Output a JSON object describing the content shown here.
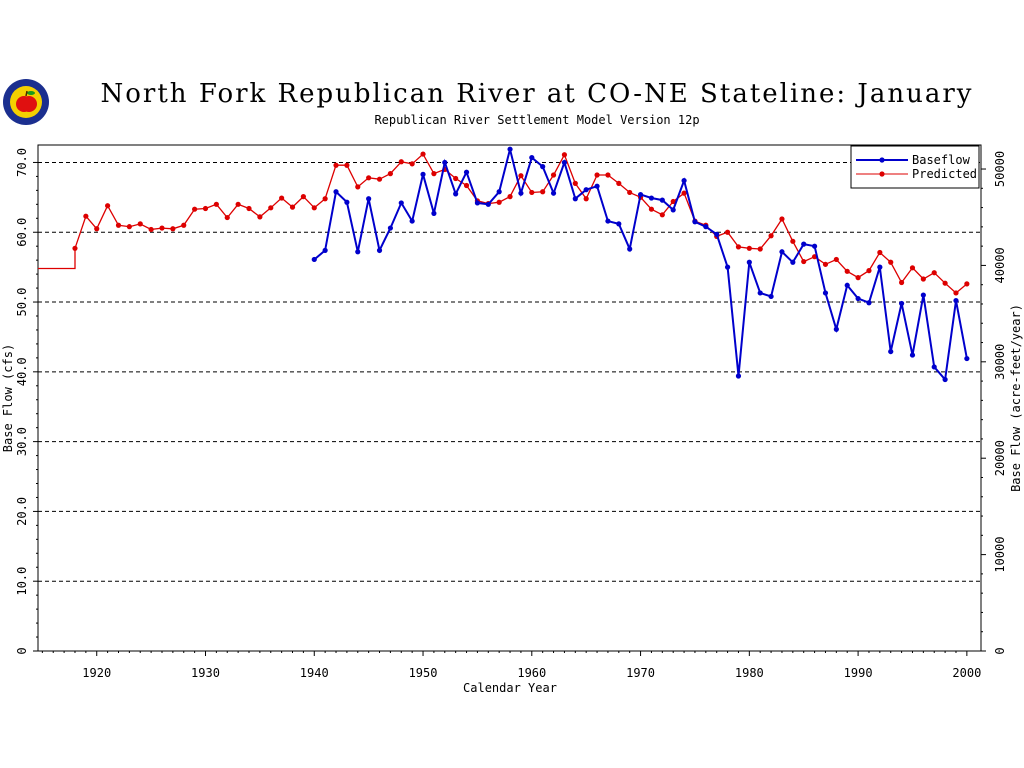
{
  "header": {
    "title": "North Fork Republican River at CO-NE Stateline: January",
    "subtitle": "Republican River Settlement Model Version 12p",
    "logo_icon": "apple-seal-logo-icon"
  },
  "colors": {
    "baseflow": "#0000cc",
    "predicted": "#dd0000",
    "grid": "#000000",
    "logo_ring": "#1b2f8f",
    "logo_fill": "#f4d000",
    "apple": "#e01010",
    "leaf": "#1b9a1b"
  },
  "chart_data": {
    "type": "line",
    "title": "North Fork Republican River at CO-NE Stateline: January",
    "subtitle": "Republican River Settlement Model Version 12p",
    "xlabel": "Calendar Year",
    "ylabel": "Base Flow (cfs)",
    "y2label": "Base Flow (acre-feet/year)",
    "xlim": [
      1914.6,
      2001.3
    ],
    "ylim": [
      0,
      72.5
    ],
    "y2lim": [
      0,
      52492
    ],
    "xticks": [
      1920,
      1930,
      1940,
      1950,
      1960,
      1970,
      1980,
      1990,
      2000
    ],
    "xtick_labels": [
      "1920",
      "1930",
      "1940",
      "1950",
      "1960",
      "1970",
      "1980",
      "1990",
      "2000"
    ],
    "yticks": [
      0,
      10,
      20,
      30,
      40,
      50,
      60,
      70
    ],
    "ytick_labels": [
      "0",
      "10.0",
      "20.0",
      "30.0",
      "40.0",
      "50.0",
      "60.0",
      "70.0"
    ],
    "y2ticks": [
      0,
      10000,
      20000,
      30000,
      40000,
      50000
    ],
    "y2tick_labels": [
      "0",
      "10000",
      "20000",
      "30000",
      "40000",
      "50000"
    ],
    "grid": "horizontal dashed at y ticks",
    "legend_position": "top-right",
    "series": [
      {
        "name": "Baseflow",
        "color": "#0000cc",
        "x": [
          1940,
          1941,
          1942,
          1943,
          1944,
          1945,
          1946,
          1947,
          1948,
          1949,
          1950,
          1951,
          1952,
          1953,
          1954,
          1955,
          1956,
          1957,
          1958,
          1959,
          1960,
          1961,
          1962,
          1963,
          1964,
          1965,
          1966,
          1967,
          1968,
          1969,
          1970,
          1971,
          1972,
          1973,
          1974,
          1975,
          1976,
          1977,
          1978,
          1979,
          1980,
          1981,
          1982,
          1983,
          1984,
          1985,
          1986,
          1987,
          1988,
          1989,
          1990,
          1991,
          1992,
          1993,
          1994,
          1995,
          1996,
          1997,
          1998,
          1999,
          2000
        ],
        "y": [
          56.1,
          57.4,
          65.8,
          64.3,
          57.2,
          64.8,
          57.4,
          60.6,
          64.2,
          61.6,
          68.3,
          62.7,
          70.0,
          65.5,
          68.6,
          64.2,
          64.0,
          65.8,
          71.9,
          65.6,
          70.7,
          69.4,
          65.6,
          70.0,
          64.8,
          66.1,
          66.6,
          61.6,
          61.2,
          57.6,
          65.4,
          64.9,
          64.6,
          63.2,
          67.4,
          61.5,
          60.8,
          59.7,
          55.0,
          39.4,
          55.7,
          51.3,
          50.8,
          57.2,
          55.7,
          58.3,
          58.0,
          51.3,
          46.1,
          52.4,
          50.5,
          49.9,
          55.0,
          42.9,
          49.8,
          42.4,
          51.0,
          40.7,
          38.9,
          50.2,
          41.9
        ]
      },
      {
        "name": "Predicted",
        "color": "#dd0000",
        "x": [
          1914.6,
          1918,
          1918,
          1919,
          1920,
          1921,
          1922,
          1923,
          1924,
          1925,
          1926,
          1927,
          1928,
          1929,
          1930,
          1931,
          1932,
          1933,
          1934,
          1935,
          1936,
          1937,
          1938,
          1939,
          1940,
          1941,
          1942,
          1943,
          1944,
          1945,
          1946,
          1947,
          1948,
          1949,
          1950,
          1951,
          1952,
          1953,
          1954,
          1955,
          1956,
          1957,
          1958,
          1959,
          1960,
          1961,
          1962,
          1963,
          1964,
          1965,
          1966,
          1967,
          1968,
          1969,
          1970,
          1971,
          1972,
          1973,
          1974,
          1975,
          1976,
          1977,
          1978,
          1979,
          1980,
          1981,
          1982,
          1983,
          1984,
          1985,
          1986,
          1987,
          1988,
          1989,
          1990,
          1991,
          1992,
          1993,
          1994,
          1995,
          1996,
          1997,
          1998,
          1999,
          2000
        ],
        "y": [
          54.8,
          54.8,
          57.7,
          62.3,
          60.5,
          63.8,
          61.0,
          60.8,
          61.2,
          60.4,
          60.6,
          60.5,
          61.0,
          63.3,
          63.4,
          64.0,
          62.1,
          64.0,
          63.4,
          62.2,
          63.5,
          64.9,
          63.6,
          65.1,
          63.5,
          64.8,
          69.6,
          69.6,
          66.5,
          67.8,
          67.6,
          68.4,
          70.1,
          69.8,
          71.2,
          68.4,
          69.0,
          67.7,
          66.7,
          64.5,
          64.1,
          64.3,
          65.1,
          68.1,
          65.7,
          65.8,
          68.2,
          71.1,
          67.0,
          64.8,
          68.2,
          68.2,
          67.0,
          65.7,
          65.0,
          63.3,
          62.5,
          64.4,
          65.6,
          61.6,
          61.0,
          59.4,
          60.0,
          57.9,
          57.7,
          57.6,
          59.5,
          61.9,
          58.7,
          55.8,
          56.5,
          55.4,
          56.1,
          54.4,
          53.5,
          54.5,
          57.1,
          55.7,
          52.8,
          54.9,
          53.3,
          54.2,
          52.7,
          51.3,
          52.6
        ]
      }
    ]
  }
}
